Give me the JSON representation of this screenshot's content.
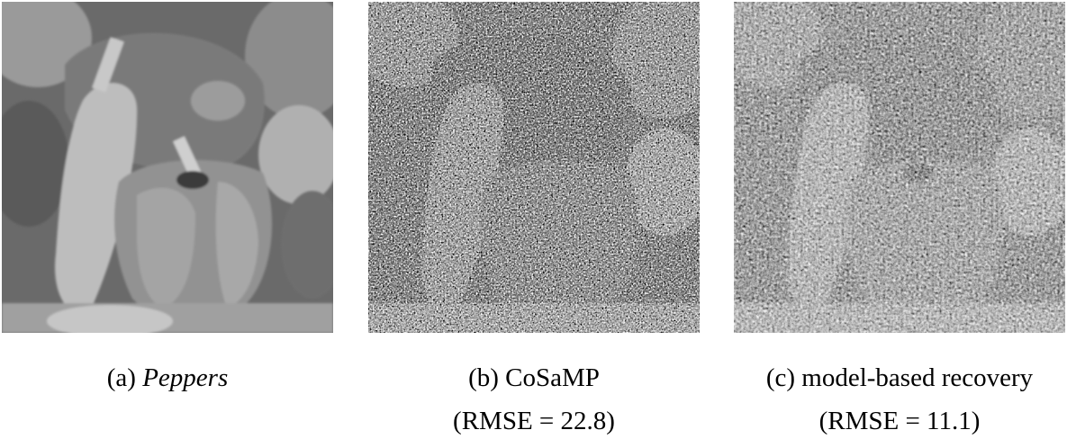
{
  "figures": [
    {
      "id": "a",
      "image_label": "Peppers original image",
      "caption_prefix": "(a)",
      "caption_title": "Peppers",
      "caption_title_italic": true,
      "caption_line2": ""
    },
    {
      "id": "b",
      "image_label": "CoSaMP reconstruction",
      "caption_prefix": "(b)",
      "caption_title": "CoSaMP",
      "caption_title_italic": false,
      "caption_line2": "(RMSE = 22.8)"
    },
    {
      "id": "c",
      "image_label": "model-based recovery reconstruction",
      "caption_prefix": "(c)",
      "caption_title": "model-based recovery",
      "caption_title_italic": false,
      "caption_line2": "(RMSE = 11.1)"
    }
  ]
}
